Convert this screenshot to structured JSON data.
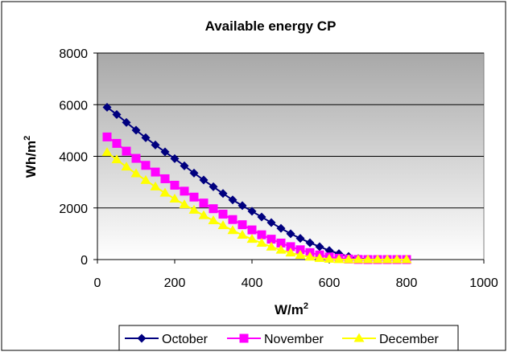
{
  "chart_data": {
    "type": "line",
    "title": "Available energy CP",
    "xlabel": "W/m",
    "xlabel_sup": "2",
    "ylabel": "Wh/m",
    "ylabel_sup": "2",
    "xlim": [
      0,
      1000
    ],
    "ylim": [
      0,
      8000
    ],
    "xticks": [
      "0",
      "200",
      "400",
      "600",
      "800",
      "1000"
    ],
    "yticks": [
      "0",
      "2000",
      "4000",
      "6000",
      "8000"
    ],
    "grid": true,
    "legend_position": "bottom",
    "x": [
      25,
      50,
      75,
      100,
      125,
      150,
      175,
      200,
      225,
      250,
      275,
      300,
      325,
      350,
      375,
      400,
      425,
      450,
      475,
      500,
      525,
      550,
      575,
      600,
      625,
      650,
      675,
      700,
      725,
      750,
      775,
      800
    ],
    "series": [
      {
        "name": "October",
        "color": "#00007f",
        "marker": "diamond",
        "values": [
          5900,
          5620,
          5310,
          5010,
          4720,
          4440,
          4170,
          3910,
          3630,
          3350,
          3080,
          2820,
          2560,
          2310,
          2090,
          1870,
          1650,
          1430,
          1210,
          1000,
          820,
          650,
          500,
          350,
          230,
          120,
          40,
          10,
          0,
          0,
          0,
          0
        ]
      },
      {
        "name": "November",
        "color": "#ff00ff",
        "marker": "square",
        "values": [
          4750,
          4500,
          4200,
          3920,
          3650,
          3390,
          3130,
          2880,
          2650,
          2420,
          2190,
          1970,
          1760,
          1550,
          1350,
          1150,
          960,
          790,
          640,
          500,
          380,
          270,
          180,
          100,
          50,
          20,
          5,
          0,
          0,
          0,
          0,
          0
        ]
      },
      {
        "name": "December",
        "color": "#ffff00",
        "marker": "triangle",
        "values": [
          4150,
          3870,
          3590,
          3330,
          3070,
          2820,
          2580,
          2350,
          2130,
          1920,
          1710,
          1510,
          1320,
          1130,
          950,
          790,
          640,
          490,
          370,
          260,
          170,
          100,
          50,
          20,
          5,
          0,
          0,
          0,
          0,
          0,
          0,
          0
        ]
      }
    ]
  }
}
